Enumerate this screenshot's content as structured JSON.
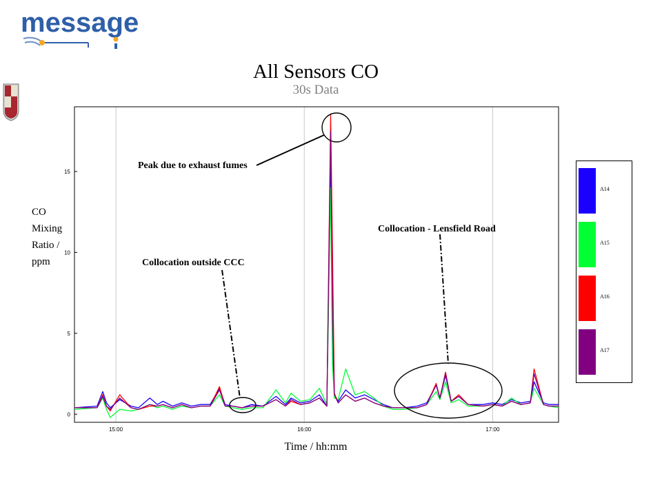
{
  "brand": {
    "logo_text": "message"
  },
  "chart_data": {
    "type": "line",
    "title": "All Sensors CO",
    "subtitle": "30s Data",
    "xlabel": "Time / hh:mm",
    "ylabel": "CO\nMixing\nRatio /\nppm",
    "x_range": [
      "14:47",
      "17:22"
    ],
    "xlim_minutes": [
      14.78,
      17.35
    ],
    "ylim": [
      -0.5,
      19
    ],
    "x_ticks": [
      "15:00",
      "16:00",
      "17:00"
    ],
    "y_ticks": [
      0,
      5,
      10,
      15
    ],
    "grid": "vertical",
    "legend_position": "right",
    "series": [
      {
        "name": "A14",
        "color": "#1a00ff",
        "x": [
          14.78,
          14.9,
          14.93,
          14.95,
          14.97,
          15.02,
          15.08,
          15.12,
          15.18,
          15.22,
          15.25,
          15.3,
          15.35,
          15.4,
          15.45,
          15.5,
          15.55,
          15.58,
          15.62,
          15.67,
          15.72,
          15.78,
          15.85,
          15.9,
          15.93,
          15.98,
          16.03,
          16.08,
          16.12,
          16.14,
          16.15,
          16.16,
          16.18,
          16.22,
          16.27,
          16.32,
          16.37,
          16.42,
          16.47,
          16.53,
          16.6,
          16.65,
          16.7,
          16.72,
          16.75,
          16.78,
          16.82,
          16.87,
          16.95,
          17.0,
          17.05,
          17.1,
          17.15,
          17.2,
          17.22,
          17.27,
          17.3,
          17.35
        ],
        "values": [
          0.4,
          0.5,
          1.4,
          0.7,
          0.4,
          0.9,
          0.5,
          0.4,
          1.0,
          0.6,
          0.8,
          0.5,
          0.7,
          0.5,
          0.6,
          0.6,
          1.6,
          0.6,
          0.5,
          0.4,
          0.6,
          0.5,
          1.1,
          0.6,
          1.0,
          0.7,
          0.8,
          1.2,
          0.5,
          15.5,
          4.0,
          1.2,
          0.8,
          1.5,
          1.0,
          1.2,
          0.9,
          0.6,
          0.4,
          0.4,
          0.5,
          0.7,
          1.8,
          1.0,
          2.4,
          0.8,
          1.1,
          0.6,
          0.6,
          0.7,
          0.6,
          0.9,
          0.7,
          0.8,
          2.0,
          0.7,
          0.6,
          0.6
        ]
      },
      {
        "name": "A15",
        "color": "#00ff33",
        "x": [
          14.78,
          14.9,
          14.93,
          14.95,
          14.97,
          15.02,
          15.08,
          15.12,
          15.18,
          15.22,
          15.25,
          15.3,
          15.35,
          15.4,
          15.45,
          15.5,
          15.55,
          15.58,
          15.62,
          15.67,
          15.72,
          15.78,
          15.85,
          15.9,
          15.93,
          15.98,
          16.03,
          16.08,
          16.12,
          16.14,
          16.15,
          16.16,
          16.18,
          16.22,
          16.27,
          16.32,
          16.37,
          16.42,
          16.47,
          16.53,
          16.6,
          16.65,
          16.7,
          16.72,
          16.75,
          16.78,
          16.82,
          16.87,
          16.95,
          17.0,
          17.05,
          17.1,
          17.15,
          17.2,
          17.22,
          17.27,
          17.3,
          17.35
        ],
        "values": [
          0.3,
          0.4,
          1.0,
          0.3,
          -0.2,
          0.3,
          0.2,
          0.3,
          0.6,
          0.4,
          0.5,
          0.3,
          0.5,
          0.4,
          0.5,
          0.5,
          1.2,
          0.5,
          0.4,
          0.3,
          0.4,
          0.4,
          1.5,
          0.7,
          1.3,
          0.8,
          0.9,
          1.6,
          0.6,
          14.0,
          3.0,
          1.0,
          0.9,
          2.8,
          1.2,
          1.4,
          1.0,
          0.5,
          0.3,
          0.3,
          0.4,
          0.6,
          1.4,
          0.9,
          2.0,
          0.7,
          0.9,
          0.5,
          0.5,
          0.6,
          0.5,
          1.0,
          0.6,
          0.7,
          1.6,
          0.6,
          0.5,
          0.4
        ]
      },
      {
        "name": "A16",
        "color": "#ff0000",
        "x": [
          14.78,
          14.9,
          14.93,
          14.95,
          14.97,
          15.02,
          15.08,
          15.12,
          15.18,
          15.22,
          15.25,
          15.3,
          15.35,
          15.4,
          15.45,
          15.5,
          15.55,
          15.58,
          15.62,
          15.67,
          15.72,
          15.78,
          15.85,
          15.9,
          15.93,
          15.98,
          16.03,
          16.08,
          16.12,
          16.14,
          16.15,
          16.16,
          16.18,
          16.22,
          16.27,
          16.32,
          16.37,
          16.42,
          16.47,
          16.53,
          16.6,
          16.65,
          16.7,
          16.72,
          16.75,
          16.78,
          16.82,
          16.87,
          16.95,
          17.0,
          17.05,
          17.1,
          17.15,
          17.2,
          17.22,
          17.27,
          17.3,
          17.35
        ],
        "values": [
          0.4,
          0.4,
          1.2,
          0.5,
          0.2,
          1.2,
          0.4,
          0.3,
          0.5,
          0.5,
          0.6,
          0.4,
          0.6,
          0.4,
          0.5,
          0.5,
          1.7,
          0.5,
          0.5,
          0.4,
          0.5,
          0.5,
          0.9,
          0.5,
          0.8,
          0.6,
          0.7,
          1.0,
          0.5,
          18.5,
          10.0,
          1.3,
          0.7,
          1.2,
          0.8,
          1.0,
          0.7,
          0.5,
          0.4,
          0.4,
          0.4,
          0.6,
          1.9,
          1.0,
          2.6,
          0.8,
          1.2,
          0.6,
          0.5,
          0.6,
          0.5,
          0.8,
          0.6,
          0.7,
          2.8,
          0.6,
          0.5,
          0.5
        ]
      },
      {
        "name": "A17",
        "color": "#800080",
        "x": [
          14.78,
          14.9,
          14.93,
          14.95,
          14.97,
          15.02,
          15.08,
          15.12,
          15.18,
          15.22,
          15.25,
          15.3,
          15.35,
          15.4,
          15.45,
          15.5,
          15.55,
          15.58,
          15.62,
          15.67,
          15.72,
          15.78,
          15.85,
          15.9,
          15.93,
          15.98,
          16.03,
          16.08,
          16.12,
          16.14,
          16.15,
          16.16,
          16.18,
          16.22,
          16.27,
          16.32,
          16.37,
          16.42,
          16.47,
          16.53,
          16.6,
          16.65,
          16.7,
          16.72,
          16.75,
          16.78,
          16.82,
          16.87,
          16.95,
          17.0,
          17.05,
          17.1,
          17.15,
          17.2,
          17.22,
          17.27,
          17.3,
          17.35
        ],
        "values": [
          0.4,
          0.4,
          1.1,
          0.5,
          0.3,
          1.0,
          0.4,
          0.3,
          0.6,
          0.5,
          0.6,
          0.4,
          0.6,
          0.4,
          0.5,
          0.5,
          1.5,
          0.5,
          0.5,
          0.4,
          0.5,
          0.5,
          0.9,
          0.5,
          0.9,
          0.6,
          0.7,
          1.0,
          0.5,
          17.5,
          6.0,
          1.2,
          0.7,
          1.2,
          0.8,
          1.0,
          0.7,
          0.5,
          0.4,
          0.4,
          0.4,
          0.6,
          1.8,
          1.0,
          2.5,
          0.8,
          1.1,
          0.6,
          0.5,
          0.6,
          0.5,
          0.8,
          0.6,
          0.7,
          2.5,
          0.6,
          0.5,
          0.5
        ]
      }
    ],
    "annotations": [
      {
        "text": "Peak due to exhaust fumes",
        "at_time": 16.14,
        "at_value": 18.0
      },
      {
        "text": "Collocation outside CCC",
        "at_time": 15.65,
        "at_value": 0.5
      },
      {
        "text": "Collocation - Lensfield Road",
        "at_time": 16.75,
        "at_value": 1.5
      }
    ]
  }
}
